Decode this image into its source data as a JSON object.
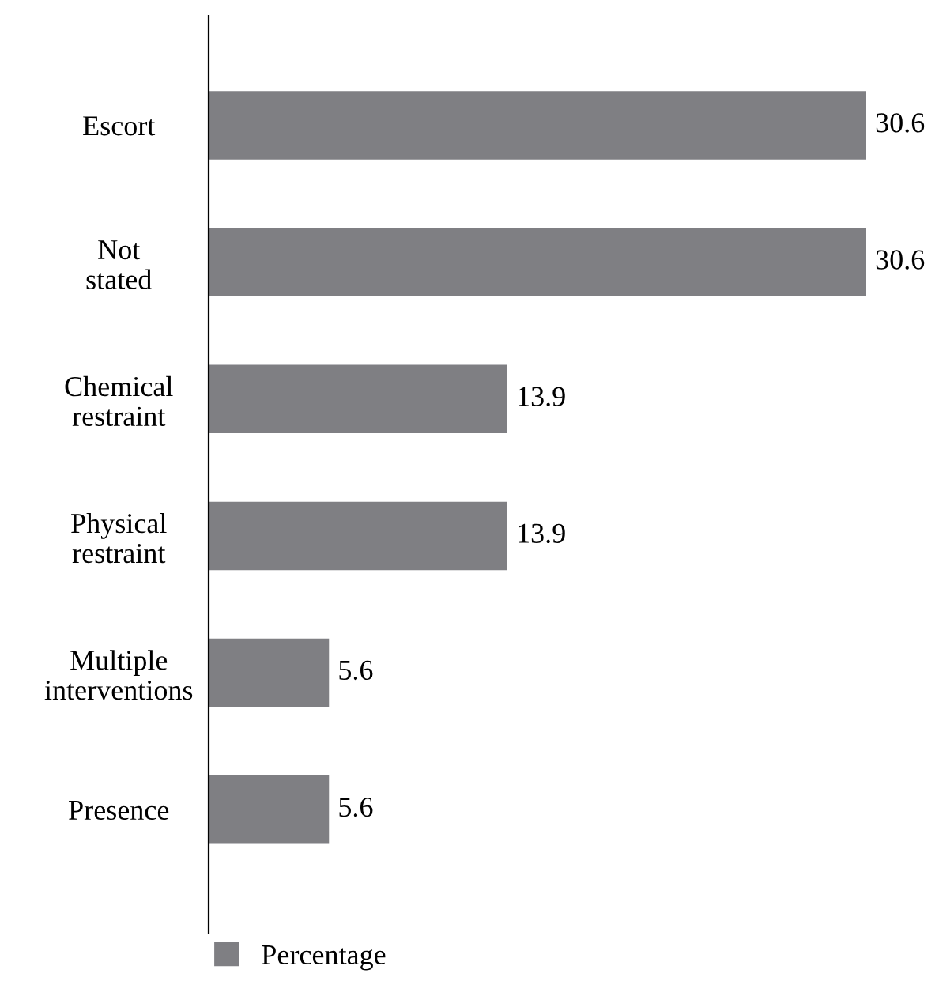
{
  "chart_data": {
    "type": "bar",
    "orientation": "horizontal",
    "categories": [
      "Escort",
      "Not\nstated",
      "Chemical\nrestraint",
      "Physical\nrestraint",
      "Multiple\ninterventions",
      "Presence"
    ],
    "series": [
      {
        "name": "Percentage",
        "color": "#7f7f83",
        "values": [
          30.6,
          30.6,
          13.9,
          13.9,
          5.6,
          5.6
        ]
      }
    ],
    "data_labels": true,
    "legend": "bottom",
    "grid": false
  }
}
